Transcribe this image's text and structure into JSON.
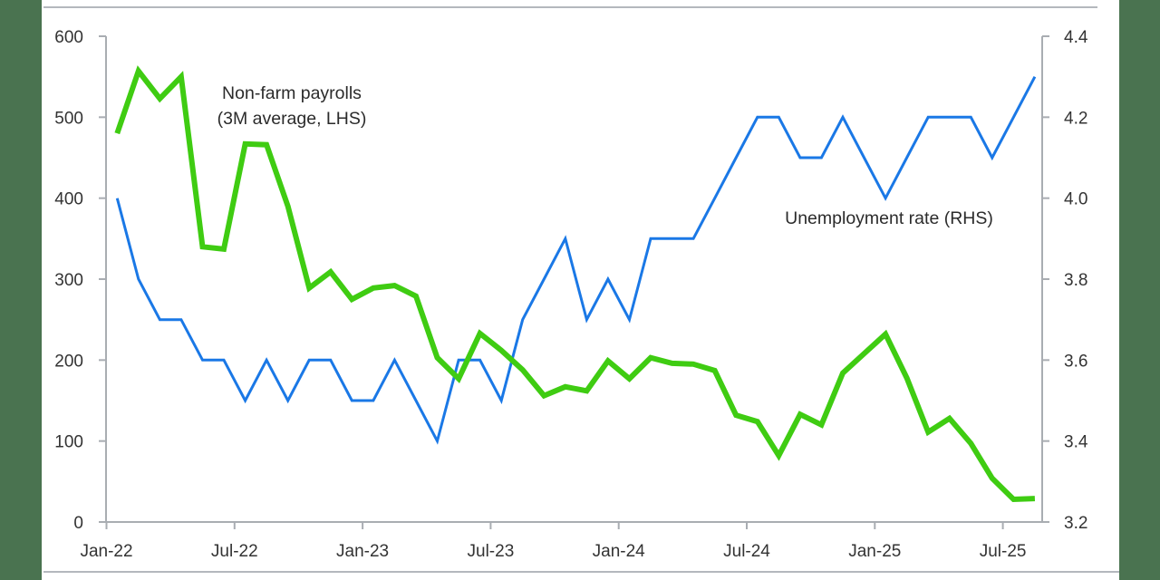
{
  "colors": {
    "band": "#4a7350",
    "payrolls": "#3fcc12",
    "unemployment": "#1a78e6",
    "axis": "#a9adb2",
    "text": "#333333"
  },
  "chart_data": {
    "type": "line",
    "title": "",
    "xlabel": "",
    "ylabel": "",
    "y2label": "",
    "x": [
      "Jan-22",
      "Feb-22",
      "Mar-22",
      "Apr-22",
      "May-22",
      "Jun-22",
      "Jul-22",
      "Aug-22",
      "Sep-22",
      "Oct-22",
      "Nov-22",
      "Dec-22",
      "Jan-23",
      "Feb-23",
      "Mar-23",
      "Apr-23",
      "May-23",
      "Jun-23",
      "Jul-23",
      "Aug-23",
      "Sep-23",
      "Oct-23",
      "Nov-23",
      "Dec-23",
      "Jan-24",
      "Feb-24",
      "Mar-24",
      "Apr-24",
      "May-24",
      "Jun-24",
      "Jul-24",
      "Aug-24",
      "Sep-24",
      "Oct-24",
      "Nov-24",
      "Dec-24",
      "Jan-25",
      "Feb-25",
      "Mar-25",
      "Apr-25",
      "May-25",
      "Jun-25",
      "Jul-25",
      "Aug-25"
    ],
    "x_tick_labels": [
      "Jan-22",
      "Jul-22",
      "Jan-23",
      "Jul-23",
      "Jan-24",
      "Jul-24",
      "Jan-25",
      "Jul-25"
    ],
    "ylim": [
      0,
      600
    ],
    "y_ticks": [
      "0",
      "100",
      "200",
      "300",
      "400",
      "500",
      "600"
    ],
    "y2lim": [
      3.2,
      4.4
    ],
    "y2_ticks": [
      "3.2",
      "3.4",
      "3.6",
      "3.8",
      "4.0",
      "4.2",
      "4.4"
    ],
    "grid": false,
    "legend": "inline annotations",
    "series": [
      {
        "name": "Non-farm payrolls (3M average, LHS)",
        "axis": "left",
        "values": [
          480,
          557,
          523,
          550,
          340,
          337,
          467,
          466,
          390,
          289,
          309,
          275,
          289,
          292,
          279,
          203,
          177,
          233,
          212,
          188,
          156,
          167,
          162,
          199,
          177,
          203,
          196,
          195,
          187,
          132,
          124,
          82,
          133,
          120,
          184,
          208,
          232,
          178,
          111,
          128,
          97,
          54,
          28,
          29
        ]
      },
      {
        "name": "Unemployment rate (RHS)",
        "axis": "right",
        "values": [
          4.0,
          3.8,
          3.7,
          3.7,
          3.6,
          3.6,
          3.5,
          3.6,
          3.5,
          3.6,
          3.6,
          3.5,
          3.5,
          3.6,
          3.5,
          3.4,
          3.6,
          3.6,
          3.5,
          3.7,
          3.8,
          3.9,
          3.7,
          3.8,
          3.7,
          3.9,
          3.9,
          3.9,
          4.0,
          4.1,
          4.2,
          4.2,
          4.1,
          4.1,
          4.2,
          4.1,
          4.0,
          4.1,
          4.2,
          4.2,
          4.2,
          4.1,
          4.2,
          4.3
        ]
      }
    ],
    "annotations": {
      "payrolls_line1": "Non-farm payrolls",
      "payrolls_line2": "(3M average, LHS)",
      "unemployment": "Unemployment rate (RHS)"
    }
  }
}
